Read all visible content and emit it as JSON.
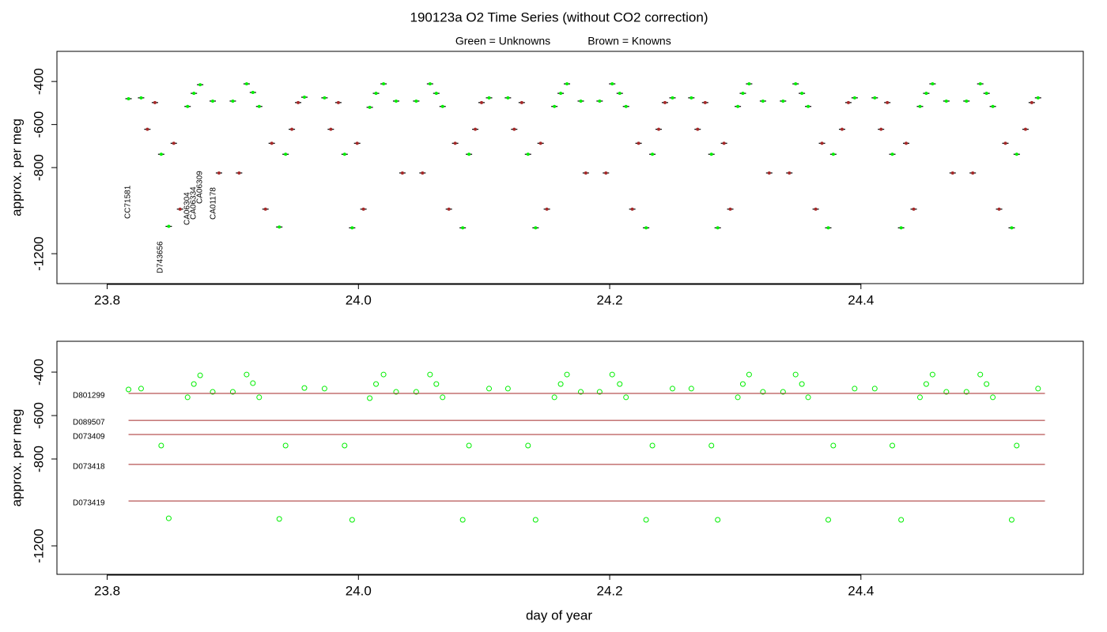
{
  "title": "190123a   O2 Time Series (without CO2 correction)",
  "x_label": "day of year",
  "chart_data": [
    {
      "type": "scatter",
      "y_label": "approx. per meg",
      "xlim": [
        23.76,
        24.577
      ],
      "ylim": [
        -1339,
        -260
      ],
      "xticks": [
        23.8,
        {
          "value": 24,
          "label": "24.0"
        },
        24.2,
        24.4
      ],
      "yticks": [
        -400,
        -600,
        -800,
        -1200
      ],
      "series": [
        {
          "name": "Green = Unknowns",
          "color": "#00ee00",
          "x": [
            23.817,
            23.827,
            23.864,
            23.869,
            23.874,
            23.884,
            23.9,
            23.911,
            23.916,
            23.921,
            23.957,
            23.973,
            24.009,
            24.014,
            24.02,
            24.03,
            24.046,
            24.057,
            24.062,
            24.067,
            24.104,
            24.119,
            24.156,
            24.161,
            24.166,
            24.177,
            24.192,
            24.202,
            24.208,
            24.213,
            24.25,
            24.265,
            24.302,
            24.306,
            24.311,
            24.322,
            24.338,
            24.348,
            24.353,
            24.358,
            24.395,
            24.411,
            24.447,
            24.452,
            24.457,
            24.468,
            24.484,
            24.495,
            24.5,
            24.505,
            24.541,
            23.843,
            23.942,
            23.989,
            24.088,
            24.135,
            24.234,
            24.281,
            24.378,
            24.425,
            24.524,
            23.849,
            23.937,
            23.995,
            24.083,
            24.141,
            24.229,
            24.286,
            24.374,
            24.432,
            24.52
          ],
          "values": [
            -480,
            -476,
            -516,
            -455,
            -415,
            -491,
            -491,
            -411,
            -451,
            -516,
            -473,
            -476,
            -520,
            -455,
            -411,
            -491,
            -491,
            -411,
            -455,
            -516,
            -476,
            -476,
            -516,
            -455,
            -411,
            -491,
            -491,
            -411,
            -455,
            -516,
            -476,
            -476,
            -516,
            -455,
            -411,
            -491,
            -491,
            -411,
            -455,
            -516,
            -476,
            -476,
            -516,
            -455,
            -411,
            -491,
            -491,
            -411,
            -455,
            -516,
            -476,
            -738,
            -738,
            -738,
            -738,
            -738,
            -738,
            -738,
            -738,
            -738,
            -738,
            -1073,
            -1076,
            -1080,
            -1080,
            -1080,
            -1080,
            -1080,
            -1080,
            -1080,
            -1080
          ]
        },
        {
          "name": "Brown = Knowns",
          "color": "#a52a2a",
          "x": [
            23.832,
            23.838,
            23.853,
            23.858,
            23.889,
            23.905,
            23.926,
            23.931,
            23.947,
            23.952,
            23.978,
            23.984,
            23.999,
            24.004,
            24.035,
            24.051,
            24.072,
            24.077,
            24.093,
            24.098,
            24.124,
            24.13,
            24.145,
            24.15,
            24.181,
            24.197,
            24.218,
            24.223,
            24.239,
            24.244,
            24.27,
            24.276,
            24.291,
            24.296,
            24.327,
            24.343,
            24.364,
            24.369,
            24.385,
            24.39,
            24.416,
            24.421,
            24.436,
            24.442,
            24.473,
            24.489,
            24.51,
            24.515,
            24.531,
            24.536
          ],
          "values": [
            -622,
            -498,
            -687,
            -993,
            -825,
            -825,
            -993,
            -687,
            -622,
            -498,
            -622,
            -498,
            -687,
            -993,
            -825,
            -825,
            -993,
            -687,
            -622,
            -498,
            -622,
            -498,
            -687,
            -993,
            -825,
            -825,
            -993,
            -687,
            -622,
            -498,
            -622,
            -498,
            -687,
            -993,
            -825,
            -825,
            -993,
            -687,
            -622,
            -498,
            -622,
            -498,
            -687,
            -993,
            -825,
            -825,
            -993,
            -687,
            -622,
            -498
          ]
        }
      ],
      "annotations": [
        "CC71581",
        "D743656",
        "CA06304",
        "CA06334",
        "CA06309",
        "CA01178"
      ]
    },
    {
      "type": "scatter",
      "y_label": "approx. per meg",
      "xlim": [
        23.76,
        24.577
      ],
      "ylim": [
        -1331,
        -258
      ],
      "xticks": [
        23.8,
        {
          "value": 24,
          "label": "24.0"
        },
        24.2,
        24.4
      ],
      "yticks": [
        -400,
        -600,
        -800,
        -1200
      ],
      "series": [
        {
          "color": "#00ee00",
          "x": [
            23.817,
            23.827,
            23.864,
            23.869,
            23.874,
            23.884,
            23.9,
            23.911,
            23.916,
            23.921,
            23.957,
            23.973,
            24.009,
            24.014,
            24.02,
            24.03,
            24.046,
            24.057,
            24.062,
            24.067,
            24.104,
            24.119,
            24.156,
            24.161,
            24.166,
            24.177,
            24.192,
            24.202,
            24.208,
            24.213,
            24.25,
            24.265,
            24.302,
            24.306,
            24.311,
            24.322,
            24.338,
            24.348,
            24.353,
            24.358,
            24.395,
            24.411,
            24.447,
            24.452,
            24.457,
            24.468,
            24.484,
            24.495,
            24.5,
            24.505,
            24.541,
            23.843,
            23.942,
            23.989,
            24.088,
            24.135,
            24.234,
            24.281,
            24.378,
            24.425,
            24.524,
            23.849,
            23.937,
            23.995,
            24.083,
            24.141,
            24.229,
            24.286,
            24.374,
            24.432,
            24.52
          ],
          "values": [
            -480,
            -476,
            -516,
            -455,
            -415,
            -491,
            -491,
            -411,
            -451,
            -516,
            -473,
            -476,
            -520,
            -455,
            -411,
            -491,
            -491,
            -411,
            -455,
            -516,
            -476,
            -476,
            -516,
            -455,
            -411,
            -491,
            -491,
            -411,
            -455,
            -516,
            -476,
            -476,
            -516,
            -455,
            -411,
            -491,
            -491,
            -411,
            -455,
            -516,
            -476,
            -476,
            -516,
            -455,
            -411,
            -491,
            -491,
            -411,
            -455,
            -516,
            -476,
            -738,
            -738,
            -738,
            -738,
            -738,
            -738,
            -738,
            -738,
            -738,
            -738,
            -1073,
            -1076,
            -1080,
            -1080,
            -1080,
            -1080,
            -1080,
            -1080,
            -1080,
            -1080
          ]
        },
        {
          "name": "D801299",
          "color": "#a52a2a",
          "line": true,
          "x": [
            23.817,
            24.5465
          ],
          "values": [
            -498,
            -498
          ]
        },
        {
          "name": "D089507",
          "color": "#a52a2a",
          "line": true,
          "x": [
            23.817,
            24.5465
          ],
          "values": [
            -622,
            -622
          ]
        },
        {
          "name": "D073409",
          "color": "#a52a2a",
          "line": true,
          "x": [
            23.817,
            24.5465
          ],
          "values": [
            -687,
            -687
          ]
        },
        {
          "name": "D073418",
          "color": "#a52a2a",
          "line": true,
          "x": [
            23.817,
            24.5465
          ],
          "values": [
            -825,
            -825
          ]
        },
        {
          "name": "D073419",
          "color": "#a52a2a",
          "line": true,
          "x": [
            23.817,
            24.5465
          ],
          "values": [
            -993,
            -993
          ]
        }
      ]
    }
  ]
}
